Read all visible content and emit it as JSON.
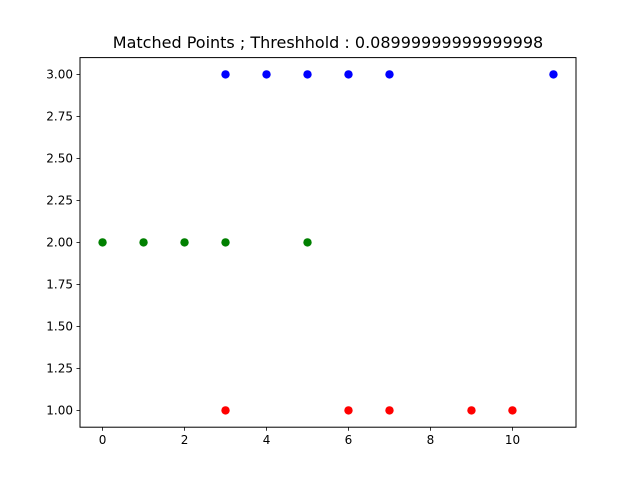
{
  "chart_data": {
    "type": "scatter",
    "title": "Matched Points ; Threshhold : 0.08999999999999998",
    "xlabel": "",
    "ylabel": "",
    "xlim": [
      -0.55,
      11.55
    ],
    "ylim": [
      0.9,
      3.1
    ],
    "xticks": [
      0,
      2,
      4,
      6,
      8,
      10
    ],
    "xtick_labels": [
      "0",
      "2",
      "4",
      "6",
      "8",
      "10"
    ],
    "yticks": [
      1.0,
      1.25,
      1.5,
      1.75,
      2.0,
      2.25,
      2.5,
      2.75,
      3.0
    ],
    "ytick_labels": [
      "1.00",
      "1.25",
      "1.50",
      "1.75",
      "2.00",
      "2.25",
      "2.50",
      "2.75",
      "3.00"
    ],
    "grid": false,
    "legend": "none",
    "series": [
      {
        "color": "#0000ff",
        "points": [
          {
            "x": 3,
            "y": 3
          },
          {
            "x": 4,
            "y": 3
          },
          {
            "x": 5,
            "y": 3
          },
          {
            "x": 6,
            "y": 3
          },
          {
            "x": 7,
            "y": 3
          },
          {
            "x": 11,
            "y": 3
          }
        ]
      },
      {
        "color": "#008000",
        "points": [
          {
            "x": 0,
            "y": 2
          },
          {
            "x": 1,
            "y": 2
          },
          {
            "x": 2,
            "y": 2
          },
          {
            "x": 3,
            "y": 2
          },
          {
            "x": 5,
            "y": 2
          }
        ]
      },
      {
        "color": "#ff0000",
        "points": [
          {
            "x": 3,
            "y": 1
          },
          {
            "x": 6,
            "y": 1
          },
          {
            "x": 7,
            "y": 1
          },
          {
            "x": 9,
            "y": 1
          },
          {
            "x": 10,
            "y": 1
          }
        ]
      }
    ]
  }
}
